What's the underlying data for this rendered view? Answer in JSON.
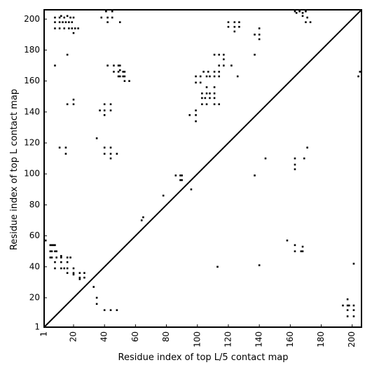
{
  "chart_data": {
    "type": "scatter",
    "xlabel": "Residue index of top L/5 contact map",
    "ylabel": "Residue index of top L contact map",
    "xlim": [
      1,
      206
    ],
    "ylim": [
      1,
      206
    ],
    "x_ticks": [
      1,
      20,
      40,
      60,
      80,
      100,
      120,
      140,
      160,
      180,
      200
    ],
    "y_ticks": [
      1,
      20,
      40,
      60,
      80,
      100,
      120,
      140,
      160,
      180,
      200
    ],
    "grid": false,
    "diagonal": true,
    "marker": "square",
    "series": [
      {
        "color": "#000000",
        "points": [
          [
            41,
            205
          ],
          [
            45,
            205
          ],
          [
            163,
            205
          ],
          [
            166,
            205
          ],
          [
            164,
            204
          ],
          [
            168,
            204
          ],
          [
            170,
            205
          ],
          [
            8,
            201
          ],
          [
            11,
            201
          ],
          [
            12,
            202
          ],
          [
            14,
            201
          ],
          [
            16,
            202
          ],
          [
            18,
            201
          ],
          [
            20,
            201
          ],
          [
            38,
            201
          ],
          [
            42,
            201
          ],
          [
            45,
            201
          ],
          [
            168,
            202
          ],
          [
            171,
            201
          ],
          [
            8,
            198
          ],
          [
            11,
            198
          ],
          [
            13,
            198
          ],
          [
            15,
            198
          ],
          [
            17,
            198
          ],
          [
            19,
            198
          ],
          [
            42,
            198
          ],
          [
            50,
            198
          ],
          [
            120,
            198
          ],
          [
            124,
            198
          ],
          [
            127,
            198
          ],
          [
            170,
            198
          ],
          [
            173,
            198
          ],
          [
            8,
            194
          ],
          [
            11,
            194
          ],
          [
            14,
            194
          ],
          [
            17,
            194
          ],
          [
            19,
            194
          ],
          [
            21,
            194
          ],
          [
            23,
            194
          ],
          [
            120,
            195
          ],
          [
            124,
            195
          ],
          [
            127,
            195
          ],
          [
            140,
            194
          ],
          [
            20,
            191
          ],
          [
            124,
            192
          ],
          [
            137,
            190
          ],
          [
            140,
            190
          ],
          [
            140,
            187
          ],
          [
            16,
            177
          ],
          [
            111,
            177
          ],
          [
            114,
            177
          ],
          [
            117,
            177
          ],
          [
            137,
            177
          ],
          [
            117,
            174
          ],
          [
            114,
            170
          ],
          [
            117,
            170
          ],
          [
            122,
            170
          ],
          [
            8,
            170
          ],
          [
            42,
            170
          ],
          [
            46,
            170
          ],
          [
            49,
            170
          ],
          [
            50,
            170
          ],
          [
            46,
            166
          ],
          [
            49,
            166
          ],
          [
            50,
            167
          ],
          [
            52,
            166
          ],
          [
            53,
            166
          ],
          [
            104,
            166
          ],
          [
            107,
            166
          ],
          [
            111,
            166
          ],
          [
            114,
            166
          ],
          [
            49,
            163
          ],
          [
            50,
            163
          ],
          [
            52,
            163
          ],
          [
            53,
            163
          ],
          [
            99,
            163
          ],
          [
            102,
            163
          ],
          [
            106,
            163
          ],
          [
            108,
            163
          ],
          [
            111,
            163
          ],
          [
            114,
            163
          ],
          [
            126,
            163
          ],
          [
            204,
            163
          ],
          [
            205,
            166
          ],
          [
            53,
            160
          ],
          [
            56,
            160
          ],
          [
            99,
            159
          ],
          [
            102,
            159
          ],
          [
            106,
            156
          ],
          [
            111,
            156
          ],
          [
            103,
            152
          ],
          [
            106,
            152
          ],
          [
            108,
            152
          ],
          [
            111,
            152
          ],
          [
            103,
            149
          ],
          [
            105,
            149
          ],
          [
            108,
            149
          ],
          [
            111,
            149
          ],
          [
            20,
            148
          ],
          [
            16,
            145
          ],
          [
            20,
            145
          ],
          [
            40,
            145
          ],
          [
            44,
            145
          ],
          [
            103,
            145
          ],
          [
            106,
            145
          ],
          [
            111,
            145
          ],
          [
            114,
            145
          ],
          [
            37,
            141
          ],
          [
            40,
            141
          ],
          [
            44,
            141
          ],
          [
            40,
            138
          ],
          [
            99,
            141
          ],
          [
            99,
            138
          ],
          [
            95,
            138
          ],
          [
            99,
            134
          ],
          [
            35,
            123
          ],
          [
            11,
            117
          ],
          [
            15,
            117
          ],
          [
            40,
            117
          ],
          [
            44,
            117
          ],
          [
            15,
            113
          ],
          [
            40,
            113
          ],
          [
            44,
            113
          ],
          [
            48,
            113
          ],
          [
            44,
            110
          ],
          [
            144,
            110
          ],
          [
            163,
            110
          ],
          [
            169,
            110
          ],
          [
            171,
            117
          ],
          [
            163,
            106
          ],
          [
            163,
            103
          ],
          [
            137,
            99
          ],
          [
            86,
            99
          ],
          [
            89,
            99
          ],
          [
            90,
            99
          ],
          [
            89,
            96
          ],
          [
            90,
            96
          ],
          [
            96,
            90
          ],
          [
            78,
            86
          ],
          [
            65,
            72
          ],
          [
            64,
            70
          ],
          [
            2,
            57
          ],
          [
            5,
            54
          ],
          [
            6,
            54
          ],
          [
            7,
            54
          ],
          [
            8,
            54
          ],
          [
            5,
            50
          ],
          [
            6,
            50
          ],
          [
            8,
            50
          ],
          [
            9,
            50
          ],
          [
            5,
            46
          ],
          [
            6,
            46
          ],
          [
            9,
            46
          ],
          [
            12,
            46
          ],
          [
            16,
            46
          ],
          [
            18,
            46
          ],
          [
            158,
            57
          ],
          [
            163,
            54
          ],
          [
            168,
            53
          ],
          [
            163,
            50
          ],
          [
            167,
            50
          ],
          [
            168,
            50
          ],
          [
            12,
            47
          ],
          [
            8,
            43
          ],
          [
            12,
            43
          ],
          [
            16,
            43
          ],
          [
            8,
            39
          ],
          [
            12,
            39
          ],
          [
            14,
            39
          ],
          [
            16,
            39
          ],
          [
            20,
            39
          ],
          [
            16,
            36
          ],
          [
            20,
            36
          ],
          [
            24,
            36
          ],
          [
            27,
            36
          ],
          [
            20,
            35
          ],
          [
            24,
            33
          ],
          [
            27,
            33
          ],
          [
            24,
            32
          ],
          [
            113,
            40
          ],
          [
            140,
            41
          ],
          [
            201,
            42
          ],
          [
            33,
            27
          ],
          [
            35,
            20
          ],
          [
            35,
            16
          ],
          [
            40,
            12
          ],
          [
            44,
            12
          ],
          [
            48,
            12
          ],
          [
            194,
            15
          ],
          [
            197,
            15
          ],
          [
            198,
            15
          ],
          [
            201,
            15
          ],
          [
            197,
            19
          ],
          [
            197,
            12
          ],
          [
            201,
            12
          ],
          [
            197,
            8
          ],
          [
            201,
            8
          ]
        ]
      }
    ]
  }
}
